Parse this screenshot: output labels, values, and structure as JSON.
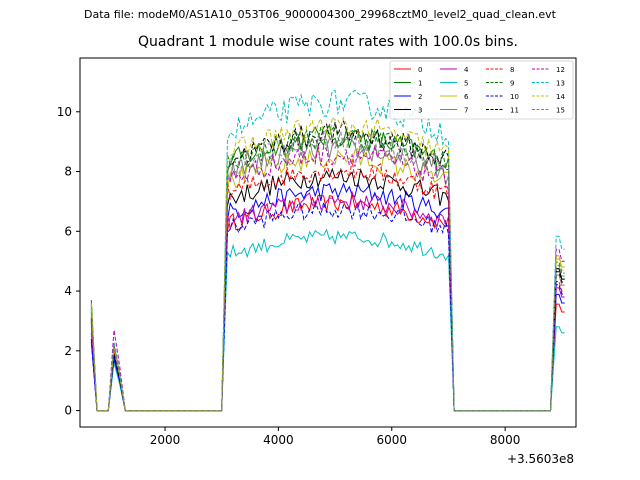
{
  "header": {
    "suptitle": "Data file: modeM0/AS1A10_053T06_9000004300_29968cztM0_level2_quad_clean.evt"
  },
  "chart_data": {
    "type": "line",
    "title": "Quadrant 1 module wise count rates with 100.0s bins.",
    "xlabel": "",
    "ylabel": "",
    "x_offset_label": "+3.5603e8",
    "xlim": [
      500,
      9250
    ],
    "ylim": [
      -0.55,
      11.8
    ],
    "xticks": [
      2000,
      4000,
      6000,
      8000
    ],
    "xtick_labels": [
      "2000",
      "4000",
      "6000",
      "8000"
    ],
    "yticks": [
      0,
      2,
      4,
      6,
      8,
      10
    ],
    "ytick_labels": [
      "0",
      "2",
      "4",
      "6",
      "8",
      "10"
    ],
    "grid": false,
    "legend_position": "top-right",
    "legend_columns": 4,
    "segments": [
      {
        "x_start": 700,
        "x_end": 1300,
        "step": 100
      },
      {
        "x_start": 1400,
        "x_end": 3000,
        "step": 100
      },
      {
        "x_start": 3100,
        "x_end": 7000,
        "step": 50
      },
      {
        "x_start": 7100,
        "x_end": 8800,
        "step": 100
      },
      {
        "x_start": 8900,
        "x_end": 9050,
        "step": 50
      }
    ],
    "series": [
      {
        "name": "0",
        "color": "#ff0000",
        "dash": "solid",
        "start": 3.6,
        "dip": 1.8,
        "end": 3.3,
        "plateau": 6.8
      },
      {
        "name": "1",
        "color": "#008000",
        "dash": "solid",
        "start": 3.7,
        "dip": 2.0,
        "end": 4.4,
        "plateau": 9.0
      },
      {
        "name": "2",
        "color": "#0000ff",
        "dash": "solid",
        "start": 2.3,
        "dip": 1.7,
        "end": 3.6,
        "plateau": 7.2
      },
      {
        "name": "3",
        "color": "#000000",
        "dash": "solid",
        "start": 3.0,
        "dip": 1.9,
        "end": 4.4,
        "plateau": 7.7
      },
      {
        "name": "4",
        "color": "#bf00bf",
        "dash": "solid",
        "start": 2.6,
        "dip": 1.9,
        "end": 3.8,
        "plateau": 6.9
      },
      {
        "name": "5",
        "color": "#00bfbf",
        "dash": "solid",
        "start": 2.8,
        "dip": 1.6,
        "end": 2.6,
        "plateau": 5.7
      },
      {
        "name": "6",
        "color": "#bfbf00",
        "dash": "solid",
        "start": 3.3,
        "dip": 2.1,
        "end": 4.8,
        "plateau": 8.3
      },
      {
        "name": "7",
        "color": "#808080",
        "dash": "solid",
        "start": 3.2,
        "dip": 2.0,
        "end": 4.2,
        "plateau": 8.6
      },
      {
        "name": "8",
        "color": "#ff0000",
        "dash": "dashed",
        "start": 3.0,
        "dip": 2.0,
        "end": 4.0,
        "plateau": 7.9
      },
      {
        "name": "9",
        "color": "#008000",
        "dash": "dashed",
        "start": 3.4,
        "dip": 2.2,
        "end": 4.6,
        "plateau": 9.0
      },
      {
        "name": "10",
        "color": "#0000ff",
        "dash": "dashed",
        "start": 2.4,
        "dip": 1.8,
        "end": 3.9,
        "plateau": 6.6
      },
      {
        "name": "11",
        "color": "#000000",
        "dash": "dashed",
        "start": 3.1,
        "dip": 1.9,
        "end": 4.3,
        "plateau": 9.1
      },
      {
        "name": "12",
        "color": "#bf00bf",
        "dash": "dashed",
        "start": 2.9,
        "dip": 2.7,
        "end": 5.0,
        "plateau": 8.4
      },
      {
        "name": "13",
        "color": "#00bfbf",
        "dash": "dashed",
        "start": 3.5,
        "dip": 2.3,
        "end": 5.4,
        "plateau": 10.1
      },
      {
        "name": "14",
        "color": "#bfbf00",
        "dash": "dashed",
        "start": 3.6,
        "dip": 2.1,
        "end": 4.7,
        "plateau": 9.3
      },
      {
        "name": "15",
        "color": "#808080",
        "dash": "dashed",
        "start": 3.3,
        "dip": 2.2,
        "end": 4.5,
        "plateau": 8.8
      }
    ]
  }
}
